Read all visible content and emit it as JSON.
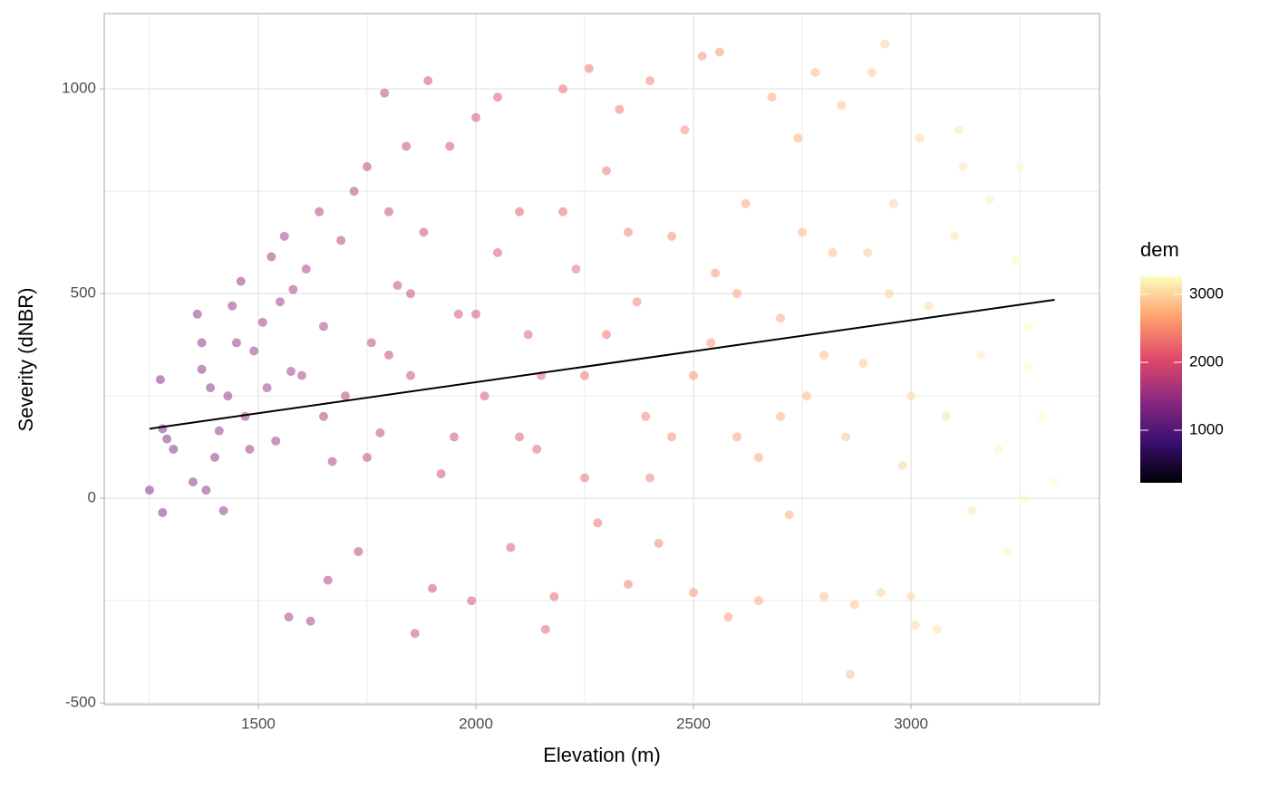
{
  "chart_data": {
    "type": "scatter",
    "xlabel": "Elevation (m)",
    "ylabel": "Severity (dNBR)",
    "xlim": [
      1146,
      3433
    ],
    "ylim": [
      -504,
      1184
    ],
    "xticks": [
      1500,
      2000,
      2500,
      3000
    ],
    "yticks": [
      -500,
      0,
      500,
      1000
    ],
    "x_minor_grid": [
      1250,
      1750,
      2250,
      2750,
      3250
    ],
    "y_minor_grid": [
      -250,
      250,
      750
    ],
    "grid": true,
    "opacity": 0.5,
    "x": [
      1250,
      1280,
      1275,
      1280,
      1290,
      1305,
      1350,
      1360,
      1370,
      1370,
      1380,
      1390,
      1400,
      1410,
      1420,
      1430,
      1440,
      1450,
      1460,
      1470,
      1480,
      1490,
      1510,
      1520,
      1530,
      1540,
      1550,
      1560,
      1570,
      1575,
      1580,
      1600,
      1610,
      1620,
      1640,
      1650,
      1660,
      1670,
      1690,
      1700,
      1720,
      1730,
      1750,
      1760,
      1780,
      1790,
      1800,
      1820,
      1840,
      1850,
      1860,
      1880,
      1890,
      1900,
      1920,
      1940,
      1960,
      1990,
      2000,
      2020,
      2050,
      2080,
      2100,
      2120,
      2140,
      2160,
      2180,
      2200,
      2230,
      2250,
      2260,
      2280,
      2300,
      2330,
      2350,
      2370,
      2390,
      2400,
      2420,
      2450,
      2480,
      2500,
      2520,
      2540,
      2560,
      2580,
      2600,
      2620,
      2650,
      2680,
      2700,
      2720,
      2740,
      2760,
      2780,
      2800,
      2820,
      2840,
      2860,
      2870,
      2890,
      2910,
      2930,
      2940,
      2960,
      2980,
      3000,
      3010,
      3020,
      3040,
      3060,
      3080,
      3100,
      3110,
      3120,
      3140,
      3160,
      3180,
      3200,
      3220,
      3240,
      3250,
      3260,
      3270,
      3300,
      3330,
      3270,
      1650,
      1750,
      1850,
      1950,
      2050,
      2150,
      2250,
      2350,
      2450,
      2550,
      2650,
      2750,
      2850,
      2950,
      2100,
      2300,
      2500,
      2700,
      2900,
      1800,
      2000,
      2200,
      2400,
      2600,
      2800,
      3000
    ],
    "values": [
      20,
      -35,
      290,
      170,
      145,
      120,
      40,
      450,
      380,
      315,
      20,
      270,
      100,
      165,
      -30,
      250,
      470,
      380,
      530,
      200,
      120,
      360,
      430,
      270,
      590,
      140,
      480,
      640,
      -290,
      310,
      510,
      300,
      560,
      -300,
      700,
      420,
      -200,
      90,
      630,
      250,
      750,
      -130,
      810,
      380,
      160,
      990,
      700,
      520,
      860,
      300,
      -330,
      650,
      1020,
      -220,
      60,
      860,
      450,
      -250,
      930,
      250,
      980,
      -120,
      700,
      400,
      120,
      -320,
      -240,
      1000,
      560,
      300,
      1050,
      -60,
      800,
      950,
      -210,
      480,
      200,
      1020,
      -110,
      640,
      900,
      -230,
      1080,
      380,
      1090,
      -290,
      150,
      720,
      -250,
      980,
      440,
      -40,
      880,
      250,
      1040,
      -240,
      600,
      960,
      -430,
      -260,
      330,
      1040,
      -230,
      1110,
      720,
      80,
      -240,
      -310,
      880,
      470,
      -320,
      200,
      640,
      900,
      810,
      -30,
      350,
      730,
      120,
      -130,
      580,
      810,
      0,
      420,
      200,
      40,
      320,
      200,
      100,
      500,
      150,
      600,
      300,
      50,
      650,
      150,
      550,
      100,
      650,
      150,
      500,
      150,
      400,
      300,
      200,
      600,
      350,
      450,
      700,
      50,
      500,
      350,
      250
    ],
    "trend": {
      "x": [
        1250,
        3330
      ],
      "values": [
        170,
        485
      ],
      "color": "#000000"
    },
    "colorbar": {
      "title": "dem",
      "lim": [
        227,
        3267
      ],
      "ticks": [
        1000,
        2000,
        3000
      ],
      "colors": [
        "#000004",
        "#3b0f70",
        "#8c2981",
        "#de4968",
        "#fe9f6d",
        "#fcfdbf"
      ]
    }
  }
}
